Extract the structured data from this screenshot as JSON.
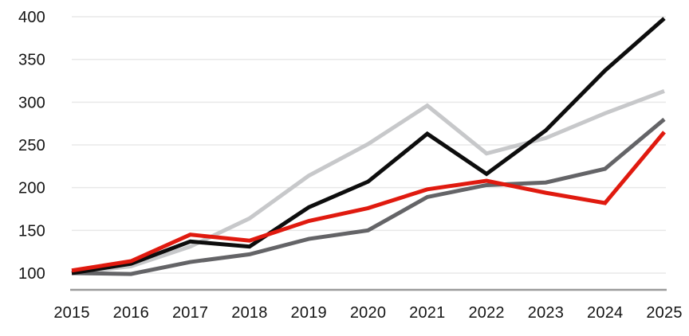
{
  "chart_data": {
    "type": "line",
    "title": "",
    "xlabel": "",
    "ylabel": "",
    "categories": [
      "2015",
      "2016",
      "2017",
      "2018",
      "2019",
      "2020",
      "2021",
      "2022",
      "2023",
      "2024",
      "2025"
    ],
    "series": [
      {
        "name": "light-gray",
        "color": "#c7c8ca",
        "values": [
          100,
          108,
          131,
          164,
          214,
          251,
          296,
          240,
          258,
          287,
          313
        ]
      },
      {
        "name": "dark-gray",
        "color": "#646467",
        "values": [
          100,
          99,
          113,
          122,
          140,
          150,
          189,
          203,
          206,
          222,
          280
        ]
      },
      {
        "name": "black",
        "color": "#0d0d0d",
        "values": [
          100,
          111,
          137,
          131,
          177,
          207,
          263,
          216,
          267,
          337,
          398
        ]
      },
      {
        "name": "red",
        "color": "#e01a0f",
        "values": [
          103,
          114,
          145,
          138,
          161,
          176,
          198,
          208,
          194,
          182,
          265
        ]
      }
    ],
    "y_ticks": [
      400,
      350,
      300,
      250,
      200,
      150,
      100
    ],
    "ylim": [
      100,
      400
    ],
    "grid": true,
    "legend": "none",
    "colors": {
      "gridline": "#e8e8e8",
      "axis_line": "#9b9b9b",
      "tick_label": "#141414",
      "background": "#ffffff"
    },
    "line_width": 5
  }
}
